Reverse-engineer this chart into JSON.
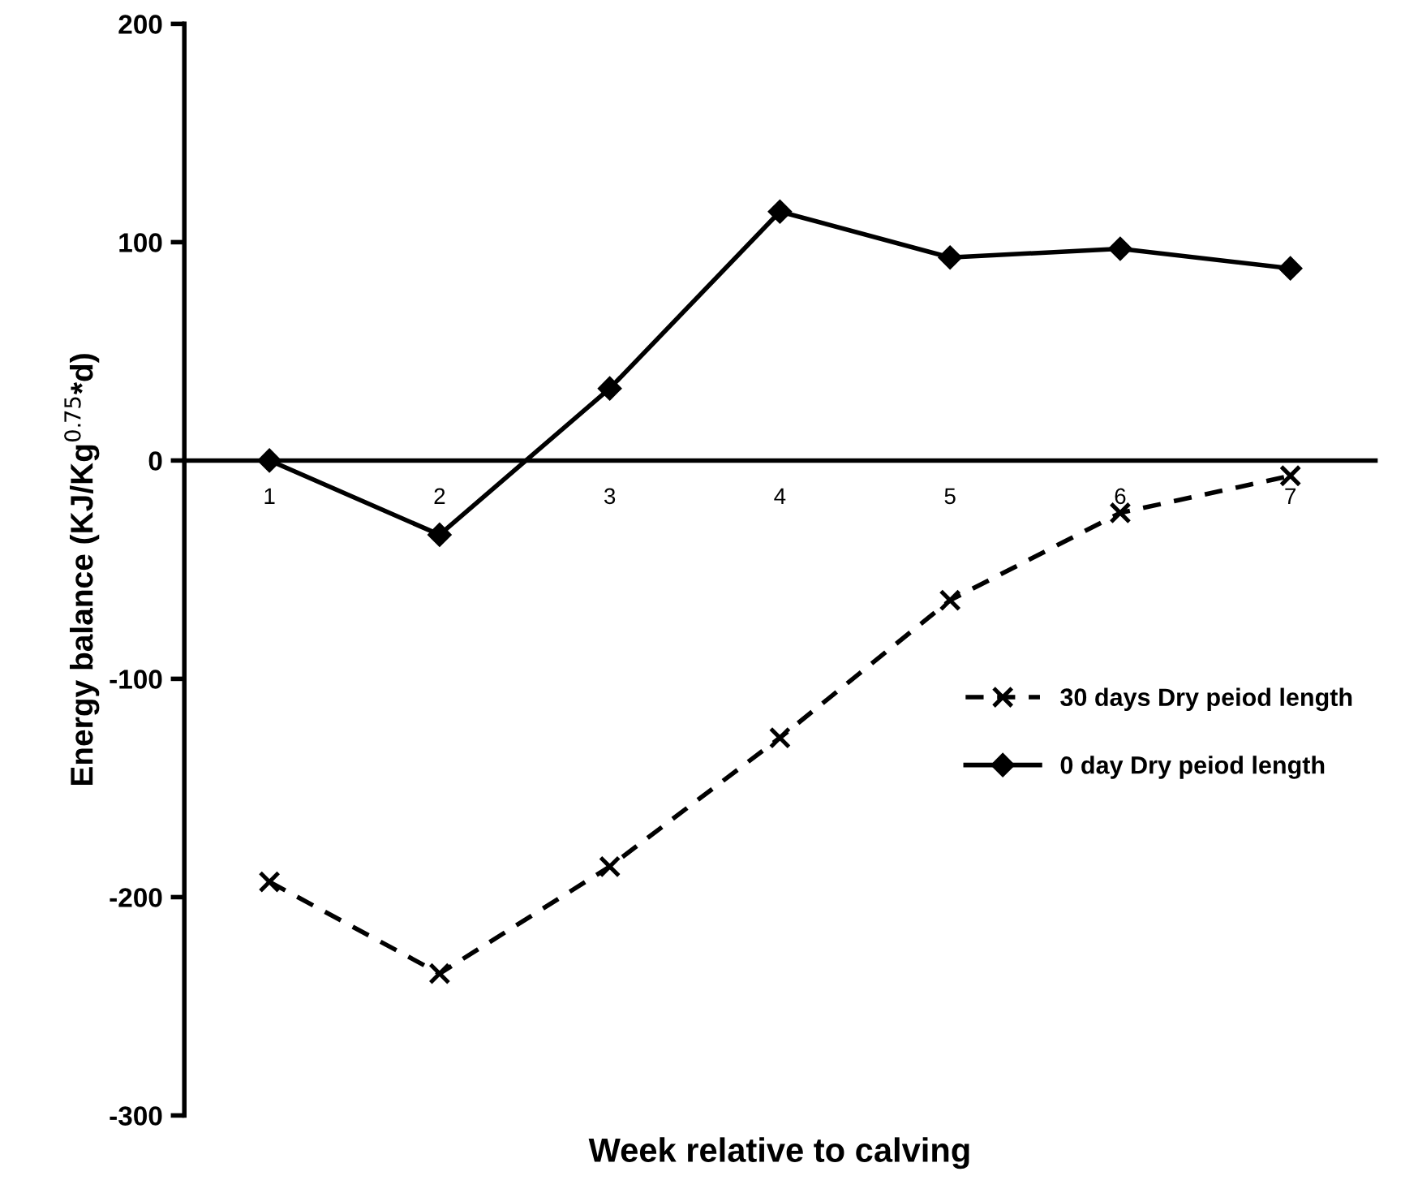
{
  "chart_data": {
    "type": "line",
    "xlabel": "Week relative to calving",
    "ylabel": "Energy balance (KJ/Kg$^{0.75}$*d)",
    "categories": [
      "1",
      "2",
      "3",
      "4",
      "5",
      "6",
      "7"
    ],
    "series": [
      {
        "name": "30 days Dry peiod length",
        "color": "#000000",
        "line_style": "dashed",
        "marker": "cross",
        "values": [
          -193,
          -235,
          -186,
          -127,
          -64,
          -24,
          -7
        ]
      },
      {
        "name": "0 day Dry peiod length",
        "color": "#000000",
        "line_style": "solid",
        "marker": "diamond",
        "values": [
          0,
          -34,
          33,
          114,
          93,
          97,
          88
        ]
      }
    ],
    "ylim": [
      -300,
      200
    ],
    "yticks": [
      -300,
      -200,
      -100,
      0,
      100,
      200
    ],
    "grid": false,
    "legend": "right"
  }
}
